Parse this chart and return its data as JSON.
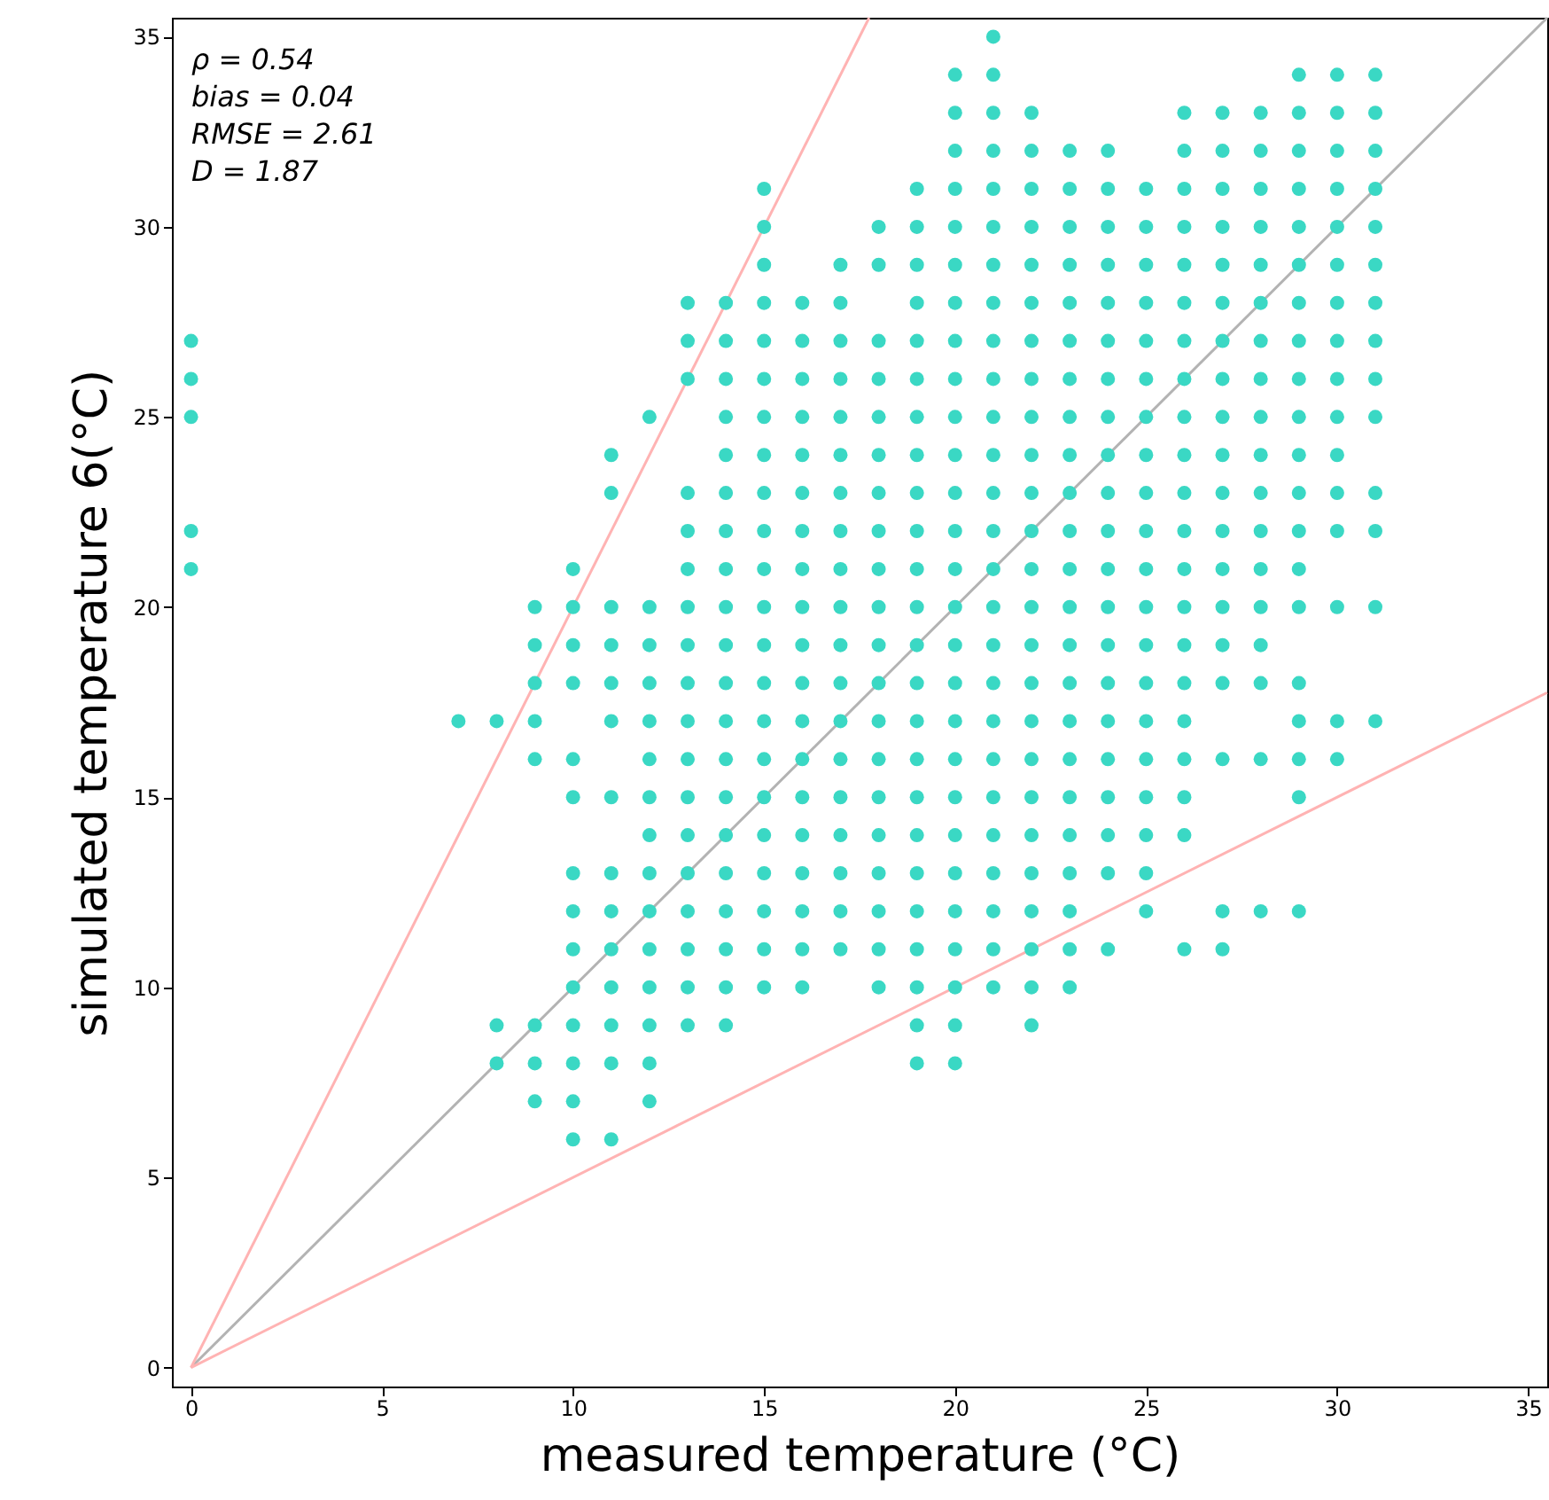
{
  "chart_data": {
    "type": "scatter",
    "xlabel": "measured temperature (°C)",
    "ylabel": "simulated temperature 6(°C)",
    "xlim": [
      -0.5,
      35.5
    ],
    "ylim": [
      -0.5,
      35.5
    ],
    "xticks": [
      0,
      5,
      10,
      15,
      20,
      25,
      30,
      35
    ],
    "yticks": [
      0,
      5,
      10,
      15,
      20,
      25,
      30,
      35
    ],
    "grid": false,
    "annotations": [
      "ρ = 0.54",
      "bias = 0.04",
      "RMSE = 2.61",
      "D = 1.87"
    ],
    "series": [
      {
        "type": "line",
        "color": "#b3b3b3",
        "x": [
          0,
          35.5
        ],
        "values": [
          0,
          35.5
        ]
      },
      {
        "type": "line",
        "color": "#ffb3b3",
        "x": [
          0,
          17.75
        ],
        "values": [
          0,
          35.5
        ]
      },
      {
        "type": "line",
        "color": "#ffb3b3",
        "x": [
          0,
          35.5
        ],
        "values": [
          0,
          17.75
        ]
      },
      {
        "color": "#3ad8c4",
        "marker": "circle",
        "x": [
          0,
          0,
          0,
          0,
          0,
          7,
          8,
          8,
          8,
          9,
          9,
          9,
          9,
          9,
          9,
          9,
          9,
          10,
          10,
          10,
          10,
          10,
          10,
          10,
          10,
          10,
          10,
          10,
          10,
          10,
          10,
          11,
          11,
          11,
          11,
          11,
          11,
          11,
          11,
          11,
          11,
          11,
          11,
          11,
          11,
          12,
          12,
          12,
          12,
          12,
          12,
          12,
          12,
          12,
          12,
          12,
          12,
          12,
          12,
          12,
          13,
          13,
          13,
          13,
          13,
          13,
          13,
          13,
          13,
          13,
          13,
          13,
          13,
          13,
          13,
          13,
          13,
          13,
          14,
          14,
          14,
          14,
          14,
          14,
          14,
          14,
          14,
          14,
          14,
          14,
          14,
          14,
          14,
          14,
          14,
          14,
          14,
          14,
          15,
          15,
          15,
          15,
          15,
          15,
          15,
          15,
          15,
          15,
          15,
          15,
          15,
          15,
          15,
          15,
          15,
          15,
          15,
          15,
          15,
          15,
          16,
          16,
          16,
          16,
          16,
          16,
          16,
          16,
          16,
          16,
          16,
          16,
          16,
          16,
          16,
          16,
          16,
          16,
          16,
          17,
          17,
          17,
          17,
          17,
          17,
          17,
          17,
          17,
          17,
          17,
          17,
          17,
          17,
          17,
          17,
          17,
          17,
          17,
          18,
          18,
          18,
          18,
          18,
          18,
          18,
          18,
          18,
          18,
          18,
          18,
          18,
          18,
          18,
          18,
          18,
          18,
          18,
          18,
          19,
          19,
          19,
          19,
          19,
          19,
          19,
          19,
          19,
          19,
          19,
          19,
          19,
          19,
          19,
          19,
          19,
          19,
          19,
          19,
          19,
          19,
          19,
          19,
          20,
          20,
          20,
          20,
          20,
          20,
          20,
          20,
          20,
          20,
          20,
          20,
          20,
          20,
          20,
          20,
          20,
          20,
          20,
          20,
          20,
          20,
          20,
          20,
          20,
          20,
          20,
          21,
          21,
          21,
          21,
          21,
          21,
          21,
          21,
          21,
          21,
          21,
          21,
          21,
          21,
          21,
          21,
          21,
          21,
          21,
          21,
          21,
          21,
          21,
          21,
          21,
          21,
          22,
          22,
          22,
          22,
          22,
          22,
          22,
          22,
          22,
          22,
          22,
          22,
          22,
          22,
          22,
          22,
          22,
          22,
          22,
          22,
          22,
          22,
          22,
          22,
          22,
          23,
          23,
          23,
          23,
          23,
          23,
          23,
          23,
          23,
          23,
          23,
          23,
          23,
          23,
          23,
          23,
          23,
          23,
          23,
          23,
          23,
          23,
          23,
          24,
          24,
          24,
          24,
          24,
          24,
          24,
          24,
          24,
          24,
          24,
          24,
          24,
          24,
          24,
          24,
          24,
          24,
          24,
          24,
          24,
          25,
          25,
          25,
          25,
          25,
          25,
          25,
          25,
          25,
          25,
          25,
          25,
          25,
          25,
          25,
          25,
          25,
          25,
          25,
          25,
          26,
          26,
          26,
          26,
          26,
          26,
          26,
          26,
          26,
          26,
          26,
          26,
          26,
          26,
          26,
          26,
          26,
          26,
          26,
          26,
          26,
          27,
          27,
          27,
          27,
          27,
          27,
          27,
          27,
          27,
          27,
          27,
          27,
          27,
          27,
          27,
          27,
          27,
          27,
          27,
          28,
          28,
          28,
          28,
          28,
          28,
          28,
          28,
          28,
          28,
          28,
          28,
          28,
          28,
          28,
          28,
          28,
          28,
          29,
          29,
          29,
          29,
          29,
          29,
          29,
          29,
          29,
          29,
          29,
          29,
          29,
          29,
          29,
          29,
          29,
          29,
          29,
          29,
          30,
          30,
          30,
          30,
          30,
          30,
          30,
          30,
          30,
          30,
          30,
          30,
          30,
          30,
          30,
          30,
          31,
          31,
          31,
          31,
          31,
          31,
          31,
          31,
          31,
          31,
          31,
          31,
          31,
          31
        ],
        "values": [
          27,
          26,
          25,
          22,
          21,
          17,
          17,
          9,
          8,
          20,
          19,
          18,
          17,
          16,
          9,
          8,
          7,
          21,
          20,
          19,
          18,
          16,
          15,
          13,
          12,
          11,
          10,
          9,
          8,
          7,
          6,
          24,
          23,
          20,
          19,
          18,
          17,
          15,
          13,
          12,
          11,
          10,
          9,
          8,
          6,
          25,
          20,
          19,
          18,
          17,
          16,
          15,
          14,
          13,
          12,
          11,
          10,
          9,
          8,
          7,
          28,
          27,
          26,
          23,
          22,
          21,
          20,
          19,
          18,
          17,
          16,
          15,
          14,
          13,
          12,
          11,
          10,
          9,
          28,
          27,
          26,
          25,
          24,
          23,
          22,
          21,
          20,
          19,
          18,
          17,
          16,
          15,
          14,
          13,
          12,
          11,
          10,
          9,
          31,
          30,
          29,
          28,
          27,
          26,
          25,
          24,
          23,
          22,
          21,
          20,
          19,
          18,
          17,
          16,
          15,
          14,
          13,
          12,
          11,
          10,
          28,
          27,
          26,
          25,
          24,
          23,
          22,
          21,
          20,
          19,
          18,
          17,
          16,
          15,
          14,
          13,
          12,
          11,
          10,
          29,
          28,
          27,
          26,
          25,
          24,
          23,
          22,
          21,
          20,
          19,
          18,
          17,
          16,
          15,
          14,
          13,
          12,
          11,
          30,
          29,
          27,
          26,
          25,
          24,
          23,
          22,
          21,
          20,
          19,
          18,
          17,
          16,
          15,
          14,
          13,
          12,
          11,
          10,
          31,
          30,
          29,
          28,
          27,
          26,
          25,
          24,
          23,
          22,
          21,
          20,
          19,
          18,
          17,
          16,
          15,
          14,
          13,
          12,
          11,
          10,
          9,
          8,
          34,
          33,
          32,
          31,
          30,
          29,
          28,
          27,
          26,
          25,
          24,
          23,
          22,
          21,
          20,
          19,
          18,
          17,
          16,
          15,
          14,
          13,
          12,
          11,
          10,
          9,
          8,
          35,
          34,
          33,
          32,
          31,
          30,
          29,
          28,
          27,
          26,
          25,
          24,
          23,
          22,
          21,
          20,
          19,
          18,
          17,
          16,
          15,
          14,
          13,
          12,
          11,
          10,
          33,
          32,
          31,
          30,
          29,
          28,
          27,
          26,
          25,
          24,
          23,
          22,
          21,
          20,
          19,
          18,
          17,
          16,
          15,
          14,
          13,
          12,
          11,
          10,
          9,
          32,
          31,
          30,
          29,
          28,
          27,
          26,
          25,
          24,
          23,
          22,
          21,
          20,
          19,
          18,
          17,
          16,
          15,
          14,
          13,
          12,
          11,
          10,
          32,
          31,
          30,
          29,
          28,
          27,
          26,
          25,
          24,
          23,
          22,
          21,
          20,
          19,
          18,
          17,
          16,
          15,
          14,
          13,
          11,
          31,
          30,
          29,
          28,
          27,
          26,
          25,
          24,
          23,
          22,
          21,
          20,
          19,
          18,
          17,
          16,
          15,
          14,
          13,
          12,
          33,
          32,
          31,
          30,
          29,
          28,
          27,
          26,
          25,
          24,
          23,
          22,
          21,
          20,
          19,
          18,
          17,
          16,
          15,
          14,
          11,
          33,
          32,
          31,
          30,
          29,
          28,
          27,
          26,
          25,
          24,
          23,
          22,
          21,
          20,
          19,
          18,
          16,
          12,
          11,
          33,
          32,
          31,
          30,
          29,
          28,
          27,
          26,
          25,
          24,
          23,
          22,
          21,
          20,
          19,
          18,
          16,
          12,
          34,
          33,
          32,
          31,
          30,
          29,
          28,
          27,
          26,
          25,
          24,
          23,
          22,
          21,
          20,
          18,
          17,
          16,
          15,
          12,
          34,
          33,
          32,
          31,
          30,
          29,
          28,
          27,
          26,
          25,
          24,
          23,
          22,
          20,
          17,
          16,
          34,
          33,
          32,
          31,
          30,
          29,
          28,
          27,
          26,
          25,
          23,
          22,
          20,
          17
        ]
      }
    ]
  }
}
